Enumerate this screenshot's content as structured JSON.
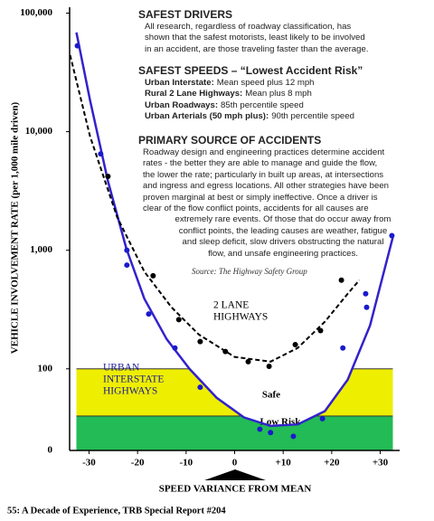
{
  "chart_data": {
    "type": "scatter",
    "log_y": true,
    "xlim": [
      -34,
      34
    ],
    "ylim": [
      20.5,
      100000
    ],
    "xticks": [
      -30,
      -20,
      -10,
      0,
      {
        "value": 10,
        "label": "+10"
      },
      {
        "value": 20,
        "label": "+20"
      },
      {
        "value": 30,
        "label": "+30"
      }
    ],
    "yticks": [
      100,
      {
        "value": 1000,
        "label": "1,000"
      },
      {
        "value": 10000,
        "label": "10,000"
      },
      {
        "value": 100000,
        "label": "100,000"
      }
    ],
    "y_origin_label": "0",
    "y_axis_label": "VEHICLE INVOLVEMENT RATE (per 1,000 mile driven)",
    "x_axis_label": "SPEED VARIANCE FROM MEAN",
    "series": [
      {
        "color": "#1a1acc",
        "x": [
          -32.4,
          -27.6,
          -22.2,
          -22.2,
          -17.7,
          -12.3,
          -7.1,
          5.2,
          7.4,
          12.1,
          18.1,
          22.3,
          27.0,
          27.2,
          32.4
        ],
        "values": [
          53000,
          6500,
          1000,
          750,
          290,
          150,
          70,
          31,
          29,
          27,
          38,
          150,
          430,
          330,
          1330
        ]
      },
      {
        "color": "#000000",
        "x": [
          -26.1,
          -16.8,
          -11.5,
          -7.1,
          -1.9,
          2.8,
          7.1,
          12.5,
          17.7,
          22.0
        ],
        "values": [
          4200,
          610,
          260,
          170,
          140,
          115,
          105,
          160,
          210,
          560
        ]
      }
    ],
    "curves": [
      {
        "style": "solid",
        "color": "#3322cc",
        "x": [
          -32.6,
          -29.8,
          -26.1,
          -22.3,
          -18.6,
          -14.0,
          -9.3,
          -3.7,
          1.9,
          7.4,
          13.0,
          18.6,
          23.3,
          27.9,
          32.6
        ],
        "values": [
          68700,
          18500,
          3820,
          1030,
          390,
          178,
          100,
          57,
          39,
          33,
          34,
          44,
          81,
          232,
          1290
        ]
      },
      {
        "style": "dashed",
        "color": "#000000",
        "x": [
          -33.9,
          -29.8,
          -24.2,
          -18.6,
          -13.0,
          -7.4,
          0,
          7.4,
          13.0,
          18.6,
          23.3,
          25.7
        ],
        "values": [
          44300,
          9160,
          1900,
          660,
          330,
          195,
          126,
          115,
          150,
          250,
          430,
          560
        ]
      }
    ],
    "zones": [
      {
        "label": "Safe",
        "threshold": 100,
        "color": "#eeee00"
      },
      {
        "label": "Low Risk",
        "threshold": 40,
        "color": "#22bb55"
      }
    ],
    "annotations": [
      {
        "lines": [
          "URBAN",
          "INTERSTATE",
          "HIGHWAYS"
        ],
        "color": "#1a1a99"
      },
      {
        "lines": [
          "2 LANE",
          "HIGHWAYS"
        ],
        "color": "#000000"
      }
    ]
  },
  "notes": {
    "sections": [
      {
        "heading": "SAFEST DRIVERS",
        "lines": [
          "All research, regardless of roadway classification, has",
          "shown that the safest motorists, least likely to be involved",
          "in an accident, are those traveling faster than the average."
        ]
      },
      {
        "heading": "SAFEST SPEEDS – “Lowest Accident Risk”",
        "items": [
          {
            "label": "Urban Interstate:",
            "text": "Mean speed plus 12 mph"
          },
          {
            "label": "Rural 2 Lane Highways:",
            "text": "Mean plus 8 mph"
          },
          {
            "label": "Urban Roadways:",
            "text": "85th percentile speed"
          },
          {
            "label": "Urban Arterials (50 mph plus):",
            "text": "90th percentile speed"
          }
        ]
      },
      {
        "heading": "PRIMARY SOURCE OF ACCIDENTS",
        "lines": [
          "Roadway design and engineering practices determine accident",
          "rates - the better they are able to manage and guide the flow,",
          "the lower the rate; particularly in built up areas, at intersections",
          "and ingress and egress locations. All other strategies have been",
          "proven marginal at best or simply ineffective. Once a driver is",
          "clear of the flow conflict points, accidents for all causes are",
          "extremely rare events. Of those that do occur away from",
          "conflict points, the leading causes are weather, fatigue",
          "and sleep deficit, slow drivers obstructing the natural",
          "flow, and unsafe engineering practices."
        ]
      }
    ],
    "source": "Source: The Highway Safety Group"
  },
  "caption": "55: A Decade of Experience, TRB Special Report #204"
}
